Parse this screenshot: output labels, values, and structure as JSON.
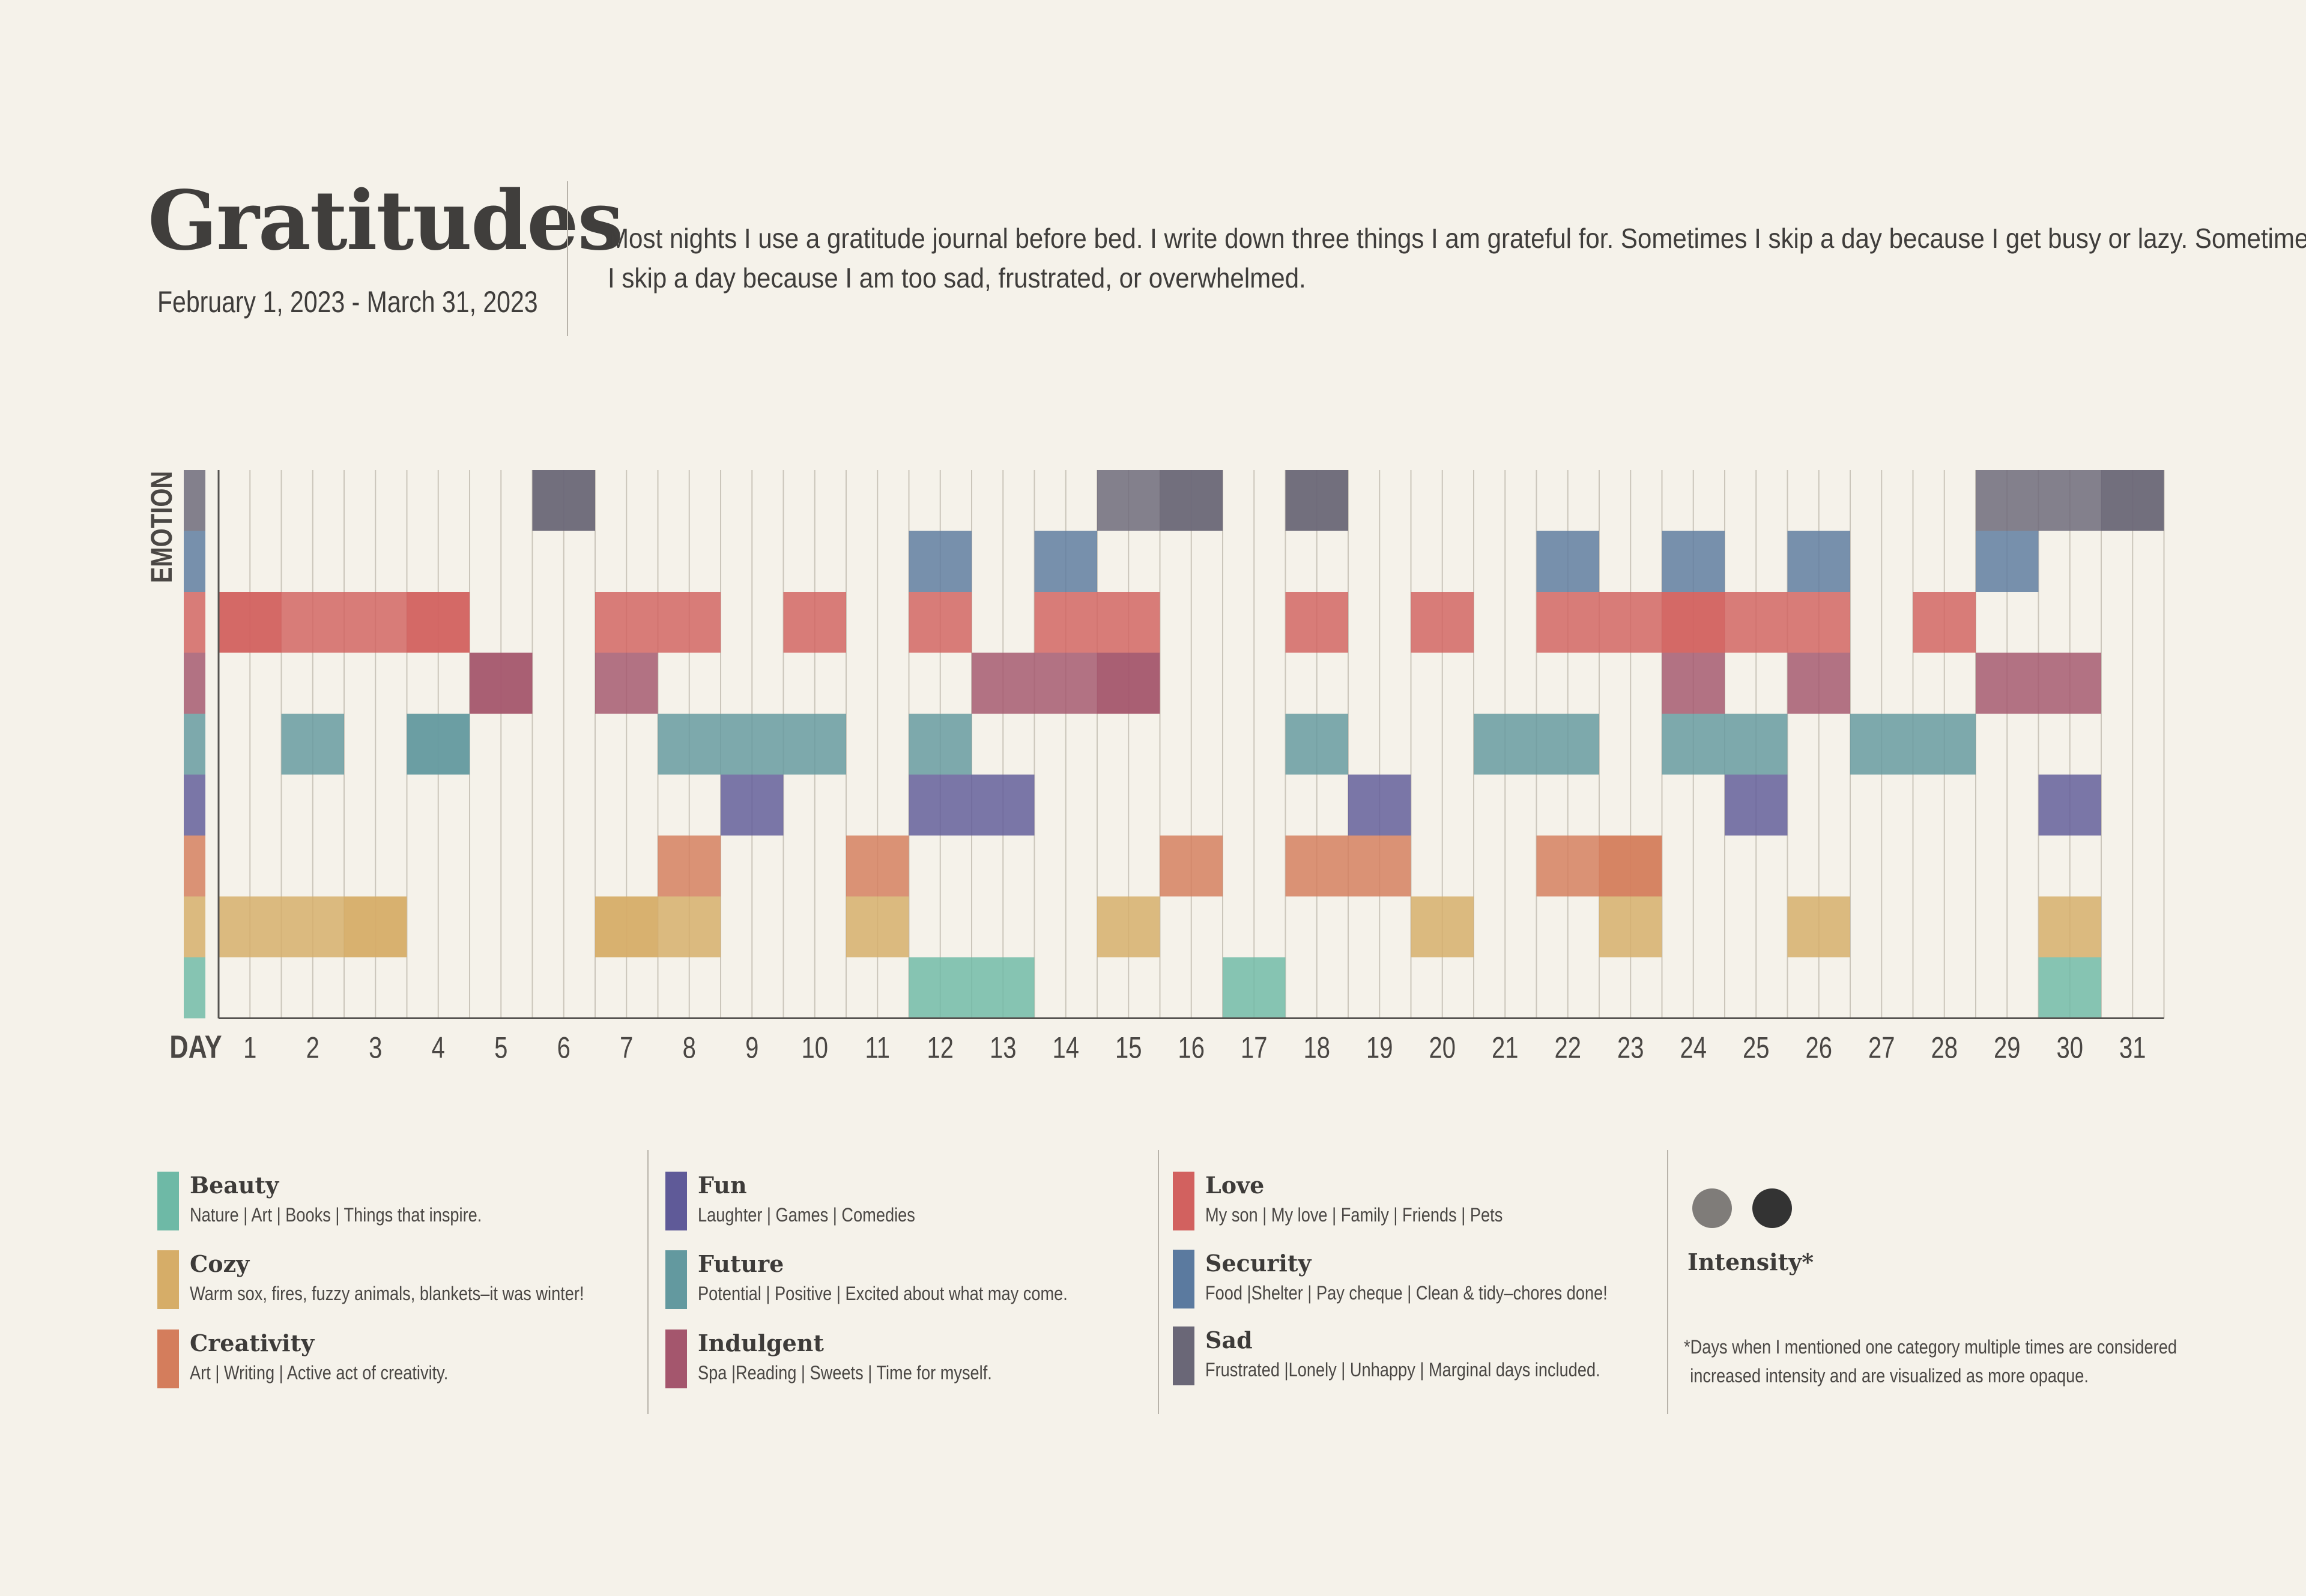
{
  "header": {
    "title": "Gratitudes",
    "subtitle": "February 1, 2023 - March 31, 2023",
    "description_line1": "Most nights I use a gratitude journal before bed. I write down three things I am grateful for. Sometimes I skip a day because I get busy or lazy. Sometimes",
    "description_line2": "I skip a day because I am too sad, frustrated, or overwhelmed."
  },
  "chart_data": {
    "type": "heatmap",
    "xlabel": "DAY",
    "ylabel": "EMOTION",
    "days": [
      1,
      2,
      3,
      4,
      5,
      6,
      7,
      8,
      9,
      10,
      11,
      12,
      13,
      14,
      15,
      16,
      17,
      18,
      19,
      20,
      21,
      22,
      23,
      24,
      25,
      26,
      27,
      28,
      29,
      30,
      31
    ],
    "categories": [
      {
        "name": "Sad",
        "color": "#6a6777",
        "cells": [
          {
            "day": 6,
            "i": 2
          },
          {
            "day": 15,
            "i": 1
          },
          {
            "day": 16,
            "i": 2
          },
          {
            "day": 18,
            "i": 2
          },
          {
            "day": 29,
            "i": 1
          },
          {
            "day": 30,
            "i": 1
          },
          {
            "day": 31,
            "i": 2
          }
        ]
      },
      {
        "name": "Security",
        "color": "#5b7a9f",
        "cells": [
          {
            "day": 12,
            "i": 1
          },
          {
            "day": 14,
            "i": 1
          },
          {
            "day": 22,
            "i": 1
          },
          {
            "day": 24,
            "i": 1
          },
          {
            "day": 26,
            "i": 1
          },
          {
            "day": 29,
            "i": 1
          }
        ]
      },
      {
        "name": "Love",
        "color": "#d2615f",
        "cells": [
          {
            "day": 1,
            "i": 2
          },
          {
            "day": 2,
            "i": 1
          },
          {
            "day": 3,
            "i": 1
          },
          {
            "day": 4,
            "i": 2
          },
          {
            "day": 7,
            "i": 1
          },
          {
            "day": 8,
            "i": 1
          },
          {
            "day": 10,
            "i": 1
          },
          {
            "day": 12,
            "i": 1
          },
          {
            "day": 14,
            "i": 1
          },
          {
            "day": 15,
            "i": 1
          },
          {
            "day": 18,
            "i": 1
          },
          {
            "day": 20,
            "i": 1
          },
          {
            "day": 22,
            "i": 1
          },
          {
            "day": 23,
            "i": 1
          },
          {
            "day": 24,
            "i": 2
          },
          {
            "day": 25,
            "i": 1
          },
          {
            "day": 26,
            "i": 1
          },
          {
            "day": 28,
            "i": 1
          }
        ]
      },
      {
        "name": "Indulgent",
        "color": "#a4566d",
        "cells": [
          {
            "day": 5,
            "i": 2
          },
          {
            "day": 7,
            "i": 1
          },
          {
            "day": 13,
            "i": 1
          },
          {
            "day": 14,
            "i": 1
          },
          {
            "day": 15,
            "i": 2
          },
          {
            "day": 24,
            "i": 1
          },
          {
            "day": 26,
            "i": 1
          },
          {
            "day": 29,
            "i": 1
          },
          {
            "day": 30,
            "i": 1
          }
        ]
      },
      {
        "name": "Future",
        "color": "#63999f",
        "cells": [
          {
            "day": 2,
            "i": 1
          },
          {
            "day": 4,
            "i": 2
          },
          {
            "day": 8,
            "i": 1
          },
          {
            "day": 9,
            "i": 1
          },
          {
            "day": 10,
            "i": 1
          },
          {
            "day": 12,
            "i": 1
          },
          {
            "day": 18,
            "i": 1
          },
          {
            "day": 21,
            "i": 1
          },
          {
            "day": 22,
            "i": 1
          },
          {
            "day": 24,
            "i": 1
          },
          {
            "day": 25,
            "i": 1
          },
          {
            "day": 27,
            "i": 1
          },
          {
            "day": 28,
            "i": 1
          }
        ]
      },
      {
        "name": "Fun",
        "color": "#5f5a98",
        "cells": [
          {
            "day": 9,
            "i": 1
          },
          {
            "day": 12,
            "i": 1
          },
          {
            "day": 13,
            "i": 1
          },
          {
            "day": 19,
            "i": 1
          },
          {
            "day": 25,
            "i": 1
          },
          {
            "day": 30,
            "i": 1
          }
        ]
      },
      {
        "name": "Creativity",
        "color": "#d47d5c",
        "cells": [
          {
            "day": 8,
            "i": 1
          },
          {
            "day": 11,
            "i": 1
          },
          {
            "day": 16,
            "i": 1
          },
          {
            "day": 18,
            "i": 1
          },
          {
            "day": 19,
            "i": 1
          },
          {
            "day": 22,
            "i": 1
          },
          {
            "day": 23,
            "i": 2
          }
        ]
      },
      {
        "name": "Cozy",
        "color": "#d6ad68",
        "cells": [
          {
            "day": 1,
            "i": 1
          },
          {
            "day": 2,
            "i": 1
          },
          {
            "day": 3,
            "i": 2
          },
          {
            "day": 7,
            "i": 2
          },
          {
            "day": 8,
            "i": 1
          },
          {
            "day": 11,
            "i": 1
          },
          {
            "day": 15,
            "i": 1
          },
          {
            "day": 20,
            "i": 1
          },
          {
            "day": 23,
            "i": 1
          },
          {
            "day": 26,
            "i": 1
          },
          {
            "day": 30,
            "i": 1
          }
        ]
      },
      {
        "name": "Beauty",
        "color": "#6eb9a6",
        "cells": [
          {
            "day": 12,
            "i": 1
          },
          {
            "day": 13,
            "i": 1
          },
          {
            "day": 17,
            "i": 1
          },
          {
            "day": 30,
            "i": 1
          }
        ]
      }
    ]
  },
  "legend": {
    "items": [
      {
        "name": "Beauty",
        "desc": "Nature | Art | Books | Things that inspire.",
        "color": "#6eb9a6"
      },
      {
        "name": "Cozy",
        "desc": "Warm sox, fires, fuzzy animals, blankets–it was winter!",
        "color": "#d6ad68"
      },
      {
        "name": "Creativity",
        "desc": "Art | Writing | Active act of creativity.",
        "color": "#d47d5c"
      },
      {
        "name": "Fun",
        "desc": "Laughter | Games | Comedies",
        "color": "#5f5a98"
      },
      {
        "name": "Future",
        "desc": "Potential | Positive | Excited about what may come.",
        "color": "#63999f"
      },
      {
        "name": "Indulgent",
        "desc": "Spa |Reading | Sweets | Time for myself.",
        "color": "#a4566d"
      },
      {
        "name": "Love",
        "desc": "My son | My love | Family | Friends | Pets",
        "color": "#d2615f"
      },
      {
        "name": "Security",
        "desc": "Food |Shelter | Pay cheque | Clean & tidy–chores done!",
        "color": "#5b7a9f"
      },
      {
        "name": "Sad",
        "desc": "Frustrated |Lonely | Unhappy | Marginal days included.",
        "color": "#6a6777"
      }
    ],
    "intensity_label": "Intensity*",
    "intensity_colors": [
      "#7f7c79",
      "#333333"
    ],
    "footnote_line1": "*Days when I mentioned one category multiple times are considered",
    "footnote_line2": "increased intensity and are visualized as more opaque."
  }
}
